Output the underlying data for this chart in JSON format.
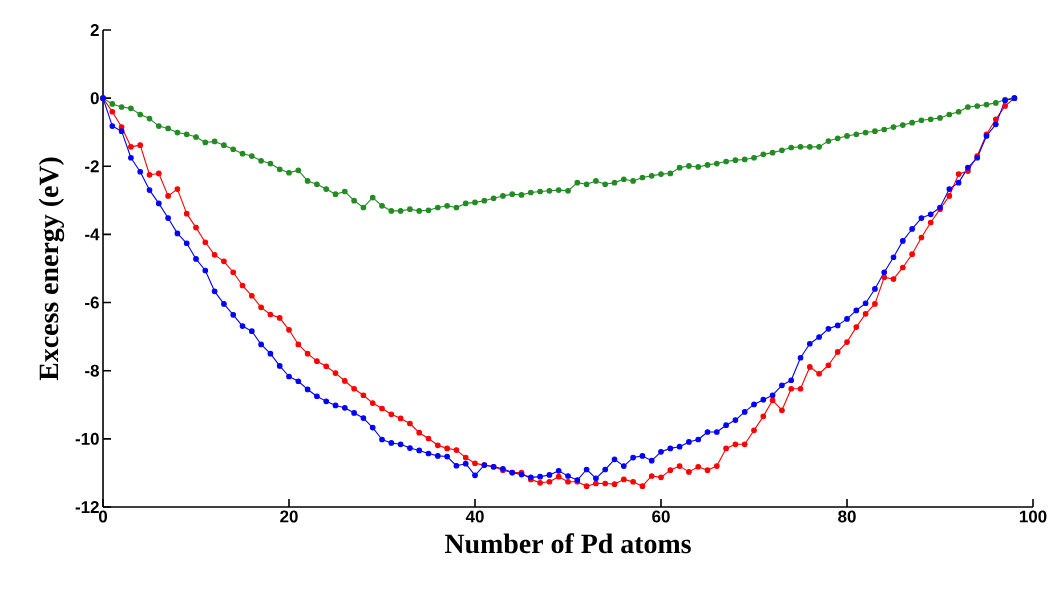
{
  "chart_data": {
    "type": "line",
    "xlabel": "Number of Pd atoms",
    "ylabel": "Excess energy (eV)",
    "xlim": [
      0,
      100
    ],
    "ylim": [
      -12,
      2
    ],
    "xticks": [
      0,
      20,
      40,
      60,
      80,
      100
    ],
    "yticks": [
      -12,
      -10,
      -8,
      -6,
      -4,
      -2,
      0,
      2
    ],
    "marker": "circle",
    "line_style": "solid",
    "x": [
      0,
      1,
      2,
      3,
      4,
      5,
      6,
      7,
      8,
      9,
      10,
      11,
      12,
      13,
      14,
      15,
      16,
      17,
      18,
      19,
      20,
      21,
      22,
      23,
      24,
      25,
      26,
      27,
      28,
      29,
      30,
      31,
      32,
      33,
      34,
      35,
      36,
      37,
      38,
      39,
      40,
      41,
      42,
      43,
      44,
      45,
      46,
      47,
      48,
      49,
      50,
      51,
      52,
      53,
      54,
      55,
      56,
      57,
      58,
      59,
      60,
      61,
      62,
      63,
      64,
      65,
      66,
      67,
      68,
      69,
      70,
      71,
      72,
      73,
      74,
      75,
      76,
      77,
      78,
      79,
      80,
      81,
      82,
      83,
      84,
      85,
      86,
      87,
      88,
      89,
      90,
      91,
      92,
      93,
      94,
      95,
      96,
      97,
      98
    ],
    "series": [
      {
        "color": "#228b22",
        "values": [
          0,
          -0.17,
          -0.26,
          -0.3,
          -0.48,
          -0.6,
          -0.82,
          -0.89,
          -1.01,
          -1.06,
          -1.14,
          -1.3,
          -1.27,
          -1.38,
          -1.5,
          -1.63,
          -1.7,
          -1.84,
          -1.92,
          -2.09,
          -2.19,
          -2.12,
          -2.43,
          -2.53,
          -2.67,
          -2.82,
          -2.74,
          -3.01,
          -3.21,
          -2.92,
          -3.16,
          -3.31,
          -3.31,
          -3.26,
          -3.31,
          -3.29,
          -3.21,
          -3.16,
          -3.21,
          -3.09,
          -3.06,
          -3.01,
          -2.94,
          -2.87,
          -2.82,
          -2.84,
          -2.77,
          -2.74,
          -2.72,
          -2.7,
          -2.72,
          -2.48,
          -2.53,
          -2.43,
          -2.53,
          -2.48,
          -2.38,
          -2.43,
          -2.33,
          -2.28,
          -2.23,
          -2.21,
          -2.04,
          -1.99,
          -2.02,
          -1.96,
          -1.92,
          -1.86,
          -1.82,
          -1.8,
          -1.75,
          -1.65,
          -1.6,
          -1.53,
          -1.45,
          -1.43,
          -1.43,
          -1.43,
          -1.26,
          -1.18,
          -1.11,
          -1.06,
          -1.01,
          -0.97,
          -0.92,
          -0.85,
          -0.79,
          -0.72,
          -0.65,
          -0.62,
          -0.58,
          -0.48,
          -0.4,
          -0.26,
          -0.23,
          -0.19,
          -0.14,
          -0.04,
          0
        ]
      },
      {
        "color": "#ff0000",
        "values": [
          0,
          -0.4,
          -0.85,
          -1.43,
          -1.38,
          -2.25,
          -2.21,
          -2.87,
          -2.67,
          -3.39,
          -3.8,
          -4.23,
          -4.6,
          -4.79,
          -5.11,
          -5.5,
          -5.8,
          -6.14,
          -6.35,
          -6.45,
          -6.8,
          -7.23,
          -7.5,
          -7.72,
          -7.87,
          -8.07,
          -8.3,
          -8.53,
          -8.72,
          -8.95,
          -9.11,
          -9.28,
          -9.4,
          -9.55,
          -9.82,
          -9.99,
          -10.19,
          -10.28,
          -10.33,
          -10.55,
          -10.72,
          -10.77,
          -10.82,
          -10.92,
          -10.99,
          -10.99,
          -11.19,
          -11.29,
          -11.26,
          -11.11,
          -11.26,
          -11.26,
          -11.39,
          -11.31,
          -11.31,
          -11.33,
          -11.19,
          -11.26,
          -11.39,
          -11.09,
          -11.13,
          -10.92,
          -10.8,
          -10.97,
          -10.82,
          -10.92,
          -10.8,
          -10.28,
          -10.16,
          -10.16,
          -9.75,
          -9.34,
          -8.87,
          -9.16,
          -8.53,
          -8.53,
          -7.89,
          -8.09,
          -7.84,
          -7.45,
          -7.16,
          -6.72,
          -6.33,
          -6.04,
          -5.26,
          -5.31,
          -4.97,
          -4.58,
          -4.09,
          -3.65,
          -3.26,
          -2.87,
          -2.23,
          -2.14,
          -1.7,
          -1.06,
          -0.62,
          -0.23,
          0
        ]
      },
      {
        "color": "#0000ff",
        "values": [
          0,
          -0.82,
          -0.97,
          -1.75,
          -2.16,
          -2.7,
          -3.09,
          -3.52,
          -3.97,
          -4.26,
          -4.72,
          -5.06,
          -5.67,
          -6.04,
          -6.36,
          -6.69,
          -6.84,
          -7.23,
          -7.5,
          -7.86,
          -8.17,
          -8.31,
          -8.55,
          -8.75,
          -8.9,
          -9.02,
          -9.09,
          -9.24,
          -9.39,
          -9.67,
          -10.02,
          -10.12,
          -10.16,
          -10.27,
          -10.34,
          -10.43,
          -10.5,
          -10.52,
          -10.79,
          -10.73,
          -11.07,
          -10.77,
          -10.82,
          -10.88,
          -10.99,
          -11.05,
          -11.13,
          -11.11,
          -11.06,
          -10.94,
          -11.09,
          -11.21,
          -10.9,
          -11.16,
          -10.9,
          -10.6,
          -10.8,
          -10.55,
          -10.5,
          -10.64,
          -10.38,
          -10.28,
          -10.23,
          -10.09,
          -10.02,
          -9.8,
          -9.8,
          -9.6,
          -9.45,
          -9.21,
          -8.99,
          -8.85,
          -8.72,
          -8.43,
          -8.28,
          -7.62,
          -7.21,
          -7.01,
          -6.77,
          -6.67,
          -6.48,
          -6.23,
          -6.02,
          -5.6,
          -5.11,
          -4.67,
          -4.19,
          -3.84,
          -3.52,
          -3.41,
          -3.21,
          -2.67,
          -2.48,
          -2.04,
          -1.75,
          -1.11,
          -0.77,
          -0.07,
          0
        ]
      }
    ]
  }
}
